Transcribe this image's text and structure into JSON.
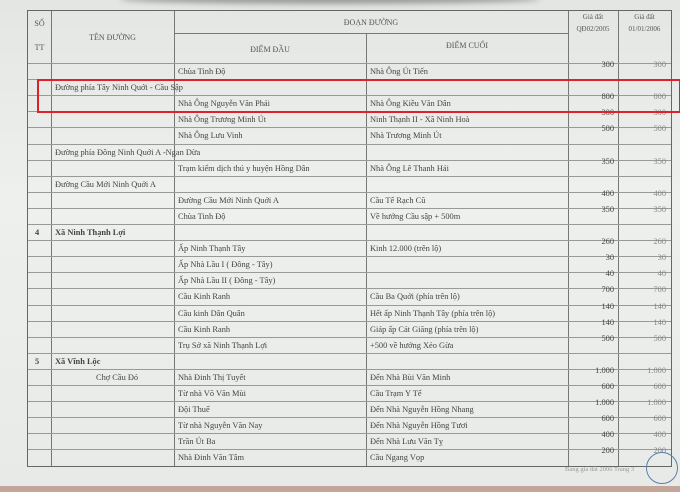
{
  "header": {
    "so": "SỐ",
    "tt": "TT",
    "ten_duong": "TÊN ĐƯỜNG",
    "doan_duong": "ĐOẠN ĐƯỜNG",
    "diem_dau": "ĐIỂM ĐẦU",
    "diem_cuoi": "ĐIỂM CUỐI",
    "gia1_l1": "Giá đất",
    "gia1_l2": "QĐ02/2005",
    "gia2_l1": "Giá đất",
    "gia2_l2": "01/01/2006"
  },
  "rows": [
    {
      "stt": "",
      "ten": "",
      "dau": "Chùa Tinh Độ",
      "cuoi": "Nhà Ông Út Tiến",
      "g1": "300",
      "g2": "300"
    },
    {
      "stt": "",
      "ten": "Đường phía Tây Ninh Quới - Cầu Sập",
      "dau": "",
      "cuoi": "",
      "g1": "",
      "g2": ""
    },
    {
      "stt": "",
      "ten": "",
      "dau": "Nhà Ông Nguyễn Văn Phải",
      "cuoi": "Nhà Ông Kiều Văn Dân",
      "g1": "800",
      "g2": "800"
    },
    {
      "stt": "",
      "ten": "",
      "dau": "Nhà Ông Trương Minh Út",
      "cuoi": "Ninh Thạnh II - Xã Ninh Hoà",
      "g1": "300",
      "g2": "300"
    },
    {
      "stt": "",
      "ten": "",
      "dau": "Nhà Ông Lưu Vinh",
      "cuoi": "Nhà Trương Minh Út",
      "g1": "500",
      "g2": "500"
    },
    {
      "stt": "",
      "ten": "Đường phía Đông Ninh Quới A -Ngan Dừa",
      "dau": "",
      "cuoi": "",
      "g1": "",
      "g2": ""
    },
    {
      "stt": "",
      "ten": "",
      "dau": "Trạm kiểm dịch thú y huyện Hồng Dân",
      "cuoi": "Nhà Ông Lê Thanh Hải",
      "g1": "350",
      "g2": "350"
    },
    {
      "stt": "",
      "ten": "Đường Cầu Mới Ninh Quới A",
      "dau": "",
      "cuoi": "",
      "g1": "",
      "g2": ""
    },
    {
      "stt": "",
      "ten": "",
      "dau": "Đường Cầu Mới Ninh Quới A",
      "cuoi": "Cầu Tế Rạch Cũ",
      "g1": "400",
      "g2": "400"
    },
    {
      "stt": "",
      "ten": "",
      "dau": "Chùa Tinh Độ",
      "cuoi": "Về hướng Cầu sập + 500m",
      "g1": "350",
      "g2": "350"
    },
    {
      "stt": "4",
      "ten": "Xã Ninh Thạnh Lợi",
      "dau": "",
      "cuoi": "",
      "g1": "",
      "g2": "",
      "bold": true
    },
    {
      "stt": "",
      "ten": "",
      "dau": "Ấp Ninh Thạnh Tây",
      "cuoi": "Kinh 12.000 (trên lộ)",
      "g1": "260",
      "g2": "260"
    },
    {
      "stt": "",
      "ten": "",
      "dau": "Ấp Nhà Lầu I ( Đông - Tây)",
      "cuoi": "",
      "g1": "30",
      "g2": "30"
    },
    {
      "stt": "",
      "ten": "",
      "dau": "Ấp Nhà Lầu II ( Đông - Tây)",
      "cuoi": "",
      "g1": "40",
      "g2": "40"
    },
    {
      "stt": "",
      "ten": "",
      "dau": "Cầu Kinh Ranh",
      "cuoi": "Cầu Ba Quới (phía trên lộ)",
      "g1": "700",
      "g2": "700"
    },
    {
      "stt": "",
      "ten": "",
      "dau": "Cầu kinh Dân Quân",
      "cuoi": "Hết ấp Ninh Thạnh Tây (phía trên lộ)",
      "g1": "140",
      "g2": "140"
    },
    {
      "stt": "",
      "ten": "",
      "dau": "Cầu Kinh Ranh",
      "cuoi": "Giáp ấp Cát Giăng (phía trên lộ)",
      "g1": "140",
      "g2": "140"
    },
    {
      "stt": "",
      "ten": "",
      "dau": "Trụ Sở xã Ninh Thạnh Lợi",
      "cuoi": "+500 về hướng Xẻo Gừa",
      "g1": "500",
      "g2": "500"
    },
    {
      "stt": "5",
      "ten": "Xã Vĩnh Lộc",
      "dau": "",
      "cuoi": "",
      "g1": "",
      "g2": "",
      "bold": true
    },
    {
      "stt": "",
      "ten": "Chợ Cầu Đỏ",
      "dau": "Nhà Đinh Thị Tuyết",
      "cuoi": "Đến Nhà Bùi Văn Minh",
      "g1": "1.000",
      "g2": "1.000",
      "indent": true
    },
    {
      "stt": "",
      "ten": "",
      "dau": "Từ nhà Võ Văn Mùi",
      "cuoi": "Cầu Trạm Y Tế",
      "g1": "600",
      "g2": "600"
    },
    {
      "stt": "",
      "ten": "",
      "dau": "Đội Thuế",
      "cuoi": "Đến Nhà Nguyễn Hồng Nhang",
      "g1": "1.000",
      "g2": "1.000"
    },
    {
      "stt": "",
      "ten": "",
      "dau": "Từ nhà Nguyễn Văn Nay",
      "cuoi": "Đến Nhà Nguyễn Hồng Tươi",
      "g1": "600",
      "g2": "600"
    },
    {
      "stt": "",
      "ten": "",
      "dau": "Trần Út Ba",
      "cuoi": "Đến Nhà Lưu Văn Tỵ",
      "g1": "400",
      "g2": "400"
    },
    {
      "stt": "",
      "ten": "",
      "dau": "Nhà Đinh Văn Tâm",
      "cuoi": "Cầu Ngang Vọp",
      "g1": "200",
      "g2": "200"
    }
  ],
  "footer": "Bảng giá đất 2006 Trang 3",
  "highlight_color": "#e0202a"
}
